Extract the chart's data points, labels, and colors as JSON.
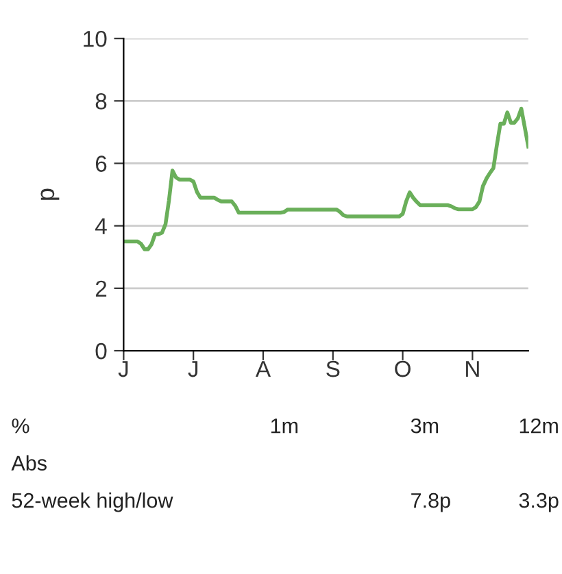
{
  "chart_data": {
    "type": "line",
    "ylabel": "p",
    "categories": [
      "J",
      null,
      null,
      null,
      null,
      null,
      null,
      null,
      null,
      null,
      null,
      null,
      null,
      null,
      null,
      null,
      null,
      null,
      null,
      null,
      "J",
      null,
      null,
      null,
      null,
      null,
      null,
      null,
      null,
      null,
      null,
      null,
      null,
      null,
      null,
      null,
      null,
      null,
      null,
      null,
      "A",
      null,
      null,
      null,
      null,
      null,
      null,
      null,
      null,
      null,
      null,
      null,
      null,
      null,
      null,
      null,
      null,
      null,
      null,
      null,
      "S",
      null,
      null,
      null,
      null,
      null,
      null,
      null,
      null,
      null,
      null,
      null,
      null,
      null,
      null,
      null,
      null,
      null,
      null,
      null,
      "O",
      null,
      null,
      null,
      null,
      null,
      null,
      null,
      null,
      null,
      null,
      null,
      null,
      null,
      null,
      null,
      null,
      null,
      null,
      null,
      "N",
      null,
      null,
      null,
      null,
      null,
      null,
      null,
      null,
      null,
      null,
      null,
      null,
      null,
      null,
      null,
      null
    ],
    "series": [
      {
        "color": "#6aaf5a",
        "values": [
          3.5,
          3.5,
          3.5,
          3.5,
          3.5,
          3.42,
          3.25,
          3.25,
          3.41,
          3.73,
          3.73,
          3.78,
          4.05,
          4.82,
          5.77,
          5.55,
          5.48,
          5.48,
          5.48,
          5.48,
          5.42,
          5.09,
          4.9,
          4.9,
          4.9,
          4.9,
          4.9,
          4.83,
          4.78,
          4.78,
          4.78,
          4.78,
          4.64,
          4.42,
          4.42,
          4.42,
          4.42,
          4.42,
          4.42,
          4.42,
          4.42,
          4.42,
          4.42,
          4.42,
          4.42,
          4.42,
          4.44,
          4.52,
          4.52,
          4.52,
          4.52,
          4.52,
          4.52,
          4.52,
          4.52,
          4.52,
          4.52,
          4.52,
          4.52,
          4.52,
          4.52,
          4.52,
          4.45,
          4.34,
          4.3,
          4.3,
          4.3,
          4.3,
          4.3,
          4.3,
          4.3,
          4.3,
          4.3,
          4.3,
          4.3,
          4.3,
          4.3,
          4.3,
          4.3,
          4.3,
          4.38,
          4.78,
          5.07,
          4.9,
          4.77,
          4.66,
          4.66,
          4.66,
          4.66,
          4.66,
          4.66,
          4.66,
          4.66,
          4.66,
          4.62,
          4.56,
          4.53,
          4.53,
          4.53,
          4.53,
          4.53,
          4.6,
          4.78,
          5.27,
          5.51,
          5.69,
          5.85,
          6.59,
          7.27,
          7.27,
          7.63,
          7.3,
          7.3,
          7.44,
          7.75,
          7.15,
          6.54
        ]
      }
    ],
    "ylim": [
      0,
      10
    ],
    "yticks": [
      0,
      2,
      4,
      6,
      8,
      10
    ],
    "grid": "y",
    "marker": "none",
    "line_style": "solid",
    "annotations": [
      "%",
      "1m",
      "3m",
      "12m",
      "Abs",
      "52-week high/low",
      "7.8p",
      "3.3p"
    ]
  }
}
